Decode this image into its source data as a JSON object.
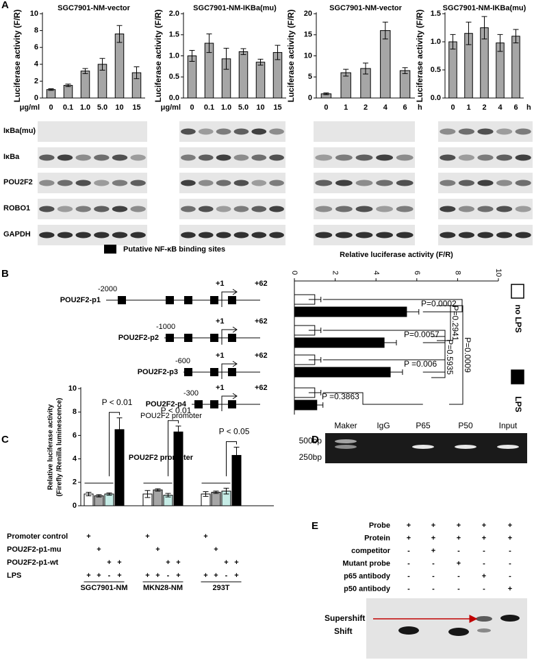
{
  "panel_labels": [
    "A",
    "B",
    "C",
    "D",
    "E"
  ],
  "chart_data": [
    {
      "type": "bar",
      "title": "SGC7901-NM-vector",
      "ylabel": "Luciferase activity (F/R)",
      "x_unit": "μg/ml",
      "categories": [
        "0",
        "0.1",
        "1.0",
        "5.0",
        "10",
        "15"
      ],
      "values": [
        1.0,
        1.5,
        3.2,
        4.0,
        7.6,
        3.0
      ],
      "errors": [
        0.1,
        0.15,
        0.3,
        0.7,
        1.0,
        0.7
      ],
      "color": "#a6a6a6",
      "ylim": [
        0,
        10
      ],
      "yticks": [
        0,
        2,
        4,
        6,
        8,
        10
      ]
    },
    {
      "type": "bar",
      "title": "SGC7901-NM-IKBa(mu)",
      "ylabel": "Luciferase activity (F/R)",
      "x_unit": "μg/ml",
      "categories": [
        "0",
        "0.1",
        "1.0",
        "5.0",
        "10",
        "15"
      ],
      "values": [
        1.0,
        1.3,
        0.93,
        1.1,
        0.85,
        1.08
      ],
      "errors": [
        0.13,
        0.22,
        0.25,
        0.07,
        0.07,
        0.17
      ],
      "color": "#a6a6a6",
      "ylim": [
        0,
        2
      ],
      "yticks": [
        {
          "value": 0,
          "label": "0.0"
        },
        0.5,
        {
          "value": 1,
          "label": "1.0"
        },
        1.5,
        {
          "value": 2,
          "label": "2.0"
        }
      ]
    },
    {
      "type": "bar",
      "title": "SGC7901-NM-vector",
      "ylabel": "Luciferase activity (F/R)",
      "x_unit": "h",
      "categories": [
        "0",
        "1",
        "2",
        "4",
        "6"
      ],
      "values": [
        1.0,
        6.0,
        7.0,
        16.0,
        6.5
      ],
      "errors": [
        0.2,
        0.8,
        1.3,
        2.0,
        0.7
      ],
      "color": "#a6a6a6",
      "ylim": [
        0,
        20
      ],
      "yticks": [
        0,
        5,
        10,
        15,
        20
      ]
    },
    {
      "type": "bar",
      "title": "SGC7901-NM-IKBa(mu)",
      "ylabel": "Luciferase activity (F/R)",
      "x_unit": "h",
      "categories": [
        "0",
        "1",
        "2",
        "4",
        "6"
      ],
      "values": [
        1.0,
        1.15,
        1.25,
        0.98,
        1.1
      ],
      "errors": [
        0.13,
        0.2,
        0.2,
        0.15,
        0.12
      ],
      "color": "#a6a6a6",
      "ylim": [
        0,
        1.5
      ],
      "yticks": [
        {
          "value": 0,
          "label": "0.0"
        },
        0.5,
        {
          "value": 1,
          "label": "1.0"
        },
        1.5
      ]
    },
    {
      "type": "barh",
      "title": "Relative luciferase activity (F/R)",
      "categories": [
        "POU2F2-p1",
        "POU2F2-p2",
        "POU2F2-p3",
        "POU2F2-p4"
      ],
      "series": [
        {
          "name": "no LPS",
          "color": "#ffffff",
          "values": [
            1.0,
            1.0,
            1.0,
            1.0
          ],
          "errors": [
            0.3,
            0.3,
            0.3,
            0.3
          ]
        },
        {
          "name": "LPS",
          "color": "#000000",
          "values": [
            5.5,
            4.4,
            4.7,
            1.1
          ],
          "errors": [
            0.6,
            0.6,
            0.6,
            0.3
          ]
        }
      ],
      "xlim": [
        0,
        10
      ],
      "xticks": [
        0,
        2,
        4,
        6,
        8,
        10
      ],
      "annotations": [
        "P=0.0002",
        "P=0.0057",
        "P =0.006",
        "P =0.3863",
        "P=0.2941",
        "P=0.5935",
        "P=0.0009"
      ]
    },
    {
      "type": "bar",
      "title": "POU2F2 promoter",
      "ylabel": [
        "Relative luciferase activity",
        "(Firefly /Renilla luminescence)"
      ],
      "categories": [
        "SGC7901-NM",
        "MKN28-NM",
        "293T"
      ],
      "series": [
        {
          "color": "#ffffff",
          "values": [
            1.0,
            1.0,
            1.0
          ],
          "errors": [
            0.15,
            0.3,
            0.2
          ]
        },
        {
          "color": "#a6a6a6",
          "values": [
            0.85,
            1.35,
            1.15
          ],
          "errors": [
            0.1,
            0.1,
            0.1
          ]
        },
        {
          "color": "#c6ece6",
          "values": [
            1.0,
            0.9,
            1.25
          ],
          "errors": [
            0.1,
            0.15,
            0.25
          ]
        },
        {
          "color": "#000000",
          "values": [
            6.5,
            6.3,
            4.3
          ],
          "errors": [
            1.0,
            0.5,
            0.7
          ]
        }
      ],
      "ylim": [
        0,
        10
      ],
      "yticks": [
        0,
        2,
        4,
        6,
        8,
        10
      ],
      "annotations": [
        "P < 0.01",
        "P < 0.01",
        "P < 0.05"
      ],
      "conditions": [
        {
          "label": "Promoter control",
          "signs": [
            "+",
            null,
            null,
            null
          ]
        },
        {
          "label": "POU2F2-p1-mu",
          "signs": [
            null,
            "+",
            null,
            null
          ]
        },
        {
          "label": "POU2F2-p1-wt",
          "signs": [
            null,
            null,
            "+",
            "+"
          ]
        },
        {
          "label": "LPS",
          "signs": [
            "+",
            "+",
            "-",
            "+"
          ]
        }
      ]
    }
  ],
  "blots_a": [
    "IκBa(mu)",
    "IκBa",
    "POU2F2",
    "ROBO1",
    "GAPDH"
  ],
  "promoter_diagram": {
    "legend": "Putative NF-κB binding sites",
    "starts": [
      "-2000",
      "-1000",
      "-600",
      "-300"
    ],
    "tss": "+1",
    "end": "+62",
    "caption": "POU2F2 promoter"
  },
  "gel_d": {
    "lanes": [
      "Maker",
      "IgG",
      "P65",
      "P50",
      "Input"
    ],
    "sizes": [
      "500bp",
      "250bp"
    ]
  },
  "emsa": {
    "rows": [
      {
        "label": "Probe",
        "signs": [
          "+",
          "+",
          "+",
          "+",
          "+"
        ]
      },
      {
        "label": "Protein",
        "signs": [
          "+",
          "+",
          "+",
          "+",
          "+"
        ]
      },
      {
        "label": "competitor",
        "signs": [
          "-",
          "+",
          "-",
          "-",
          "-"
        ]
      },
      {
        "label": "Mutant probe",
        "signs": [
          "-",
          "-",
          "+",
          "-",
          "-"
        ]
      },
      {
        "label": "p65 antibody",
        "signs": [
          "-",
          "-",
          "-",
          "+",
          "-"
        ]
      },
      {
        "label": "p50 antibody",
        "signs": [
          "-",
          "-",
          "-",
          "-",
          "+"
        ]
      }
    ],
    "bands": [
      "Supershift",
      "Shift"
    ]
  }
}
